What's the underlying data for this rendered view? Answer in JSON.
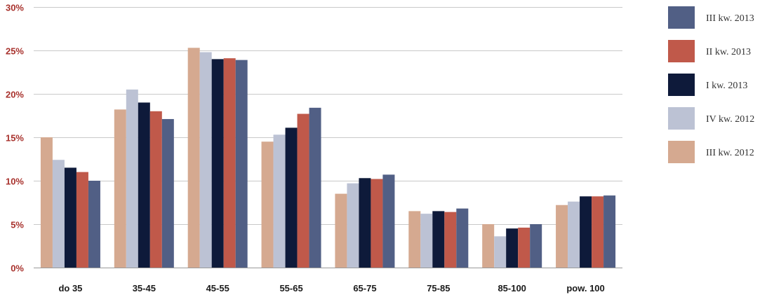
{
  "chart_data": {
    "type": "bar",
    "title": "",
    "xlabel": "",
    "ylabel": "",
    "ylim": [
      0,
      30
    ],
    "yticks": [
      0,
      5,
      10,
      15,
      20,
      25,
      30
    ],
    "ytick_labels": [
      "0%",
      "5%",
      "10%",
      "15%",
      "20%",
      "25%",
      "30%"
    ],
    "grid": true,
    "legend_position": "right",
    "categories": [
      "do 35",
      "35-45",
      "45-55",
      "55-65",
      "65-75",
      "75-85",
      "85-100",
      "pow. 100"
    ],
    "series": [
      {
        "name": "III kw. 2012",
        "color": "#d5a990",
        "values": [
          15.0,
          18.2,
          25.3,
          14.5,
          8.5,
          6.5,
          5.0,
          7.2
        ]
      },
      {
        "name": "IV kw. 2012",
        "color": "#bcc2d4",
        "values": [
          12.4,
          20.5,
          24.8,
          15.3,
          9.7,
          6.2,
          3.6,
          7.6
        ]
      },
      {
        "name": "I kw. 2013",
        "color": "#0e1a3a",
        "values": [
          11.5,
          19.0,
          24.0,
          16.1,
          10.3,
          6.5,
          4.5,
          8.2
        ]
      },
      {
        "name": "II kw. 2013",
        "color": "#c0594a",
        "values": [
          11.0,
          18.0,
          24.1,
          17.7,
          10.2,
          6.4,
          4.6,
          8.2
        ]
      },
      {
        "name": "III kw. 2013",
        "color": "#515f85",
        "values": [
          10.0,
          17.1,
          23.9,
          18.4,
          10.7,
          6.8,
          5.0,
          8.3
        ]
      }
    ],
    "legend_order": [
      "III kw. 2013",
      "II kw. 2013",
      "I kw. 2013",
      "IV kw. 2012",
      "III kw. 2012"
    ],
    "ytick_color": "#a8322d",
    "grid_color": "#c9c9c9"
  }
}
